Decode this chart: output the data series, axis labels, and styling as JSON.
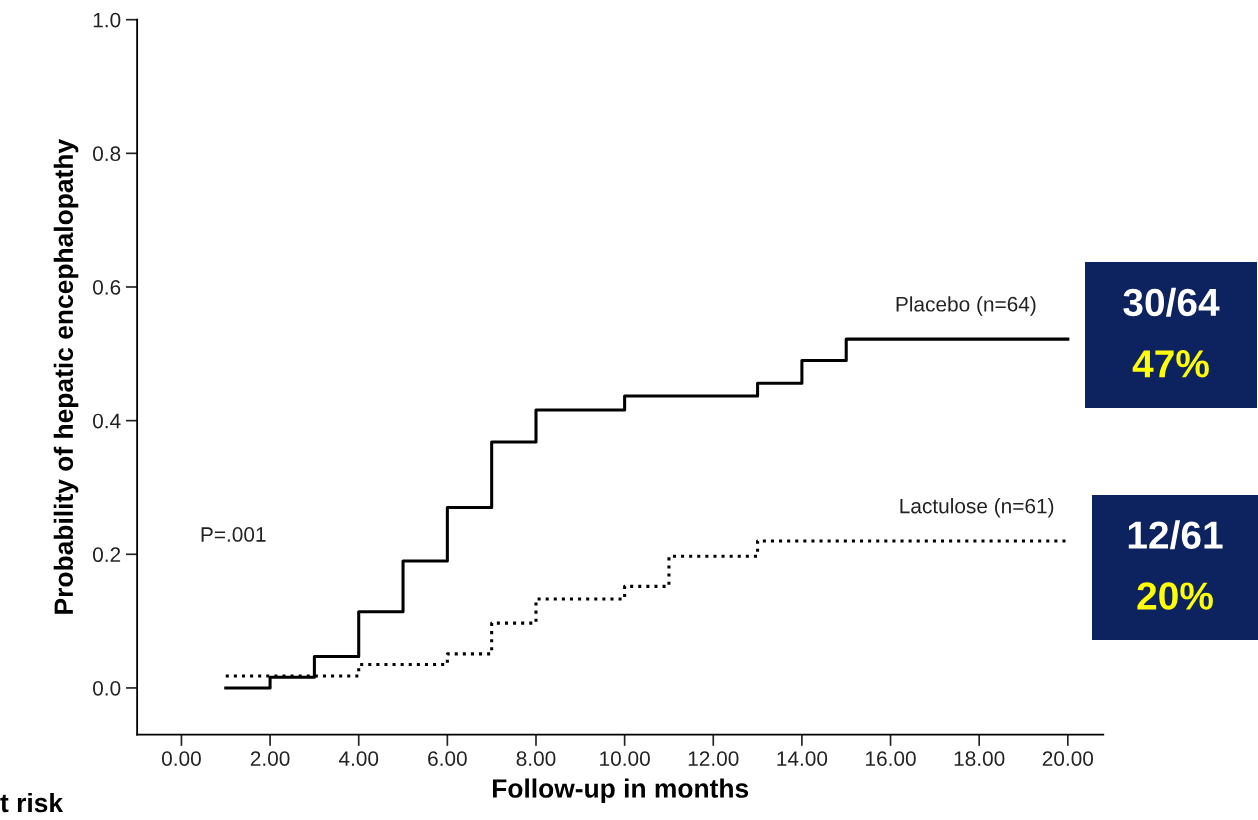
{
  "chart_data": {
    "type": "step",
    "xlabel": "Follow-up in months",
    "ylabel": "Probability of hepatic encephalopathy",
    "series": [
      {
        "name": "Placebo (n=64)",
        "color": "#000000",
        "line_style": "solid",
        "x": [
          1,
          2,
          3,
          4,
          5,
          6,
          7,
          8,
          10,
          13,
          14,
          15,
          20
        ],
        "values": [
          0.0,
          0.016,
          0.047,
          0.114,
          0.19,
          0.27,
          0.368,
          0.416,
          0.437,
          0.456,
          0.49,
          0.522,
          0.522
        ]
      },
      {
        "name": "Lactulose (n=61)",
        "color": "#000000",
        "line_style": "dotted",
        "x": [
          1,
          4,
          6,
          7,
          8,
          10,
          11,
          13,
          20
        ],
        "values": [
          0.018,
          0.035,
          0.051,
          0.097,
          0.133,
          0.152,
          0.197,
          0.22,
          0.22
        ]
      }
    ],
    "xlim": [
      -1,
      20.8
    ],
    "ylim": [
      -0.07,
      1.0
    ],
    "xticks": [
      {
        "value": 0,
        "label": "0.00"
      },
      {
        "value": 2,
        "label": "2.00"
      },
      {
        "value": 4,
        "label": "4.00"
      },
      {
        "value": 6,
        "label": "6.00"
      },
      {
        "value": 8,
        "label": "8.00"
      },
      {
        "value": 10,
        "label": "10.00"
      },
      {
        "value": 12,
        "label": "12.00"
      },
      {
        "value": 14,
        "label": "14.00"
      },
      {
        "value": 16,
        "label": "16.00"
      },
      {
        "value": 18,
        "label": "18.00"
      },
      {
        "value": 20,
        "label": "20.00"
      }
    ],
    "yticks": [
      {
        "value": 0,
        "label": "0.0"
      },
      {
        "value": 0.2,
        "label": "0.2"
      },
      {
        "value": 0.4,
        "label": "0.4"
      },
      {
        "value": 0.6,
        "label": "0.6"
      },
      {
        "value": 0.8,
        "label": "0.8"
      },
      {
        "value": 1.0,
        "label": "1.0"
      }
    ],
    "annotations": [
      "P=.001",
      "t risk",
      "30/64",
      "47%",
      "12/61",
      "20%"
    ],
    "grid": false,
    "legend": false
  }
}
